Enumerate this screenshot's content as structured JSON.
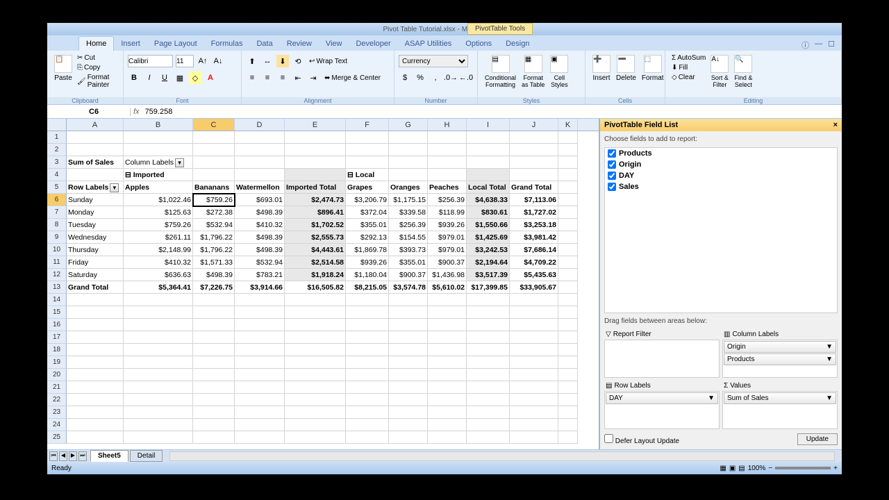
{
  "titlebar": {
    "app_title": "Pivot Table Tutorial.xlsx - Microsoft Excel",
    "contextual": "PivotTable Tools"
  },
  "tabs": {
    "items": [
      "Home",
      "Insert",
      "Page Layout",
      "Formulas",
      "Data",
      "Review",
      "View",
      "Developer",
      "ASAP Utilities",
      "Options",
      "Design"
    ],
    "active": "Home"
  },
  "ribbon": {
    "clipboard": {
      "paste": "Paste",
      "cut": "Cut",
      "copy": "Copy",
      "painter": "Format Painter",
      "label": "Clipboard"
    },
    "font": {
      "name": "Calibri",
      "size": "11",
      "label": "Font"
    },
    "alignment": {
      "wrap": "Wrap Text",
      "merge": "Merge & Center",
      "label": "Alignment"
    },
    "number": {
      "format": "Currency",
      "label": "Number"
    },
    "styles": {
      "cond": "Conditional\nFormatting",
      "fmt": "Format\nas Table",
      "cell": "Cell\nStyles",
      "label": "Styles"
    },
    "cells": {
      "insert": "Insert",
      "delete": "Delete",
      "format": "Format",
      "label": "Cells"
    },
    "editing": {
      "sum": "AutoSum",
      "fill": "Fill",
      "clear": "Clear",
      "sort": "Sort &\nFilter",
      "find": "Find &\nSelect",
      "label": "Editing"
    }
  },
  "formula_bar": {
    "name_box": "C6",
    "formula": "759.258"
  },
  "columns": [
    "A",
    "B",
    "C",
    "D",
    "E",
    "F",
    "G",
    "H",
    "I",
    "J",
    "K"
  ],
  "selected_col": "C",
  "selected_row": 6,
  "pivot": {
    "r3": {
      "A": "Sum of Sales",
      "B": "Column Labels"
    },
    "r4": {
      "B": "Imported",
      "F": "Local"
    },
    "r5": {
      "A": "Row Labels",
      "B": "Apples",
      "C": "Bananans",
      "D": "Watermellon",
      "E": "Imported Total",
      "F": "Grapes",
      "G": "Oranges",
      "H": "Peaches",
      "I": "Local Total",
      "J": "Grand Total"
    },
    "rows": [
      {
        "A": "Sunday",
        "B": "$1,022.46",
        "C": "$759.26",
        "D": "$693.01",
        "E": "$2,474.73",
        "F": "$3,206.79",
        "G": "$1,175.15",
        "H": "$256.39",
        "I": "$4,638.33",
        "J": "$7,113.06"
      },
      {
        "A": "Monday",
        "B": "$125.63",
        "C": "$272.38",
        "D": "$498.39",
        "E": "$896.41",
        "F": "$372.04",
        "G": "$339.58",
        "H": "$118.99",
        "I": "$830.61",
        "J": "$1,727.02"
      },
      {
        "A": "Tuesday",
        "B": "$759.26",
        "C": "$532.94",
        "D": "$410.32",
        "E": "$1,702.52",
        "F": "$355.01",
        "G": "$256.39",
        "H": "$939.26",
        "I": "$1,550.66",
        "J": "$3,253.18"
      },
      {
        "A": "Wednesday",
        "B": "$261.11",
        "C": "$1,796.22",
        "D": "$498.39",
        "E": "$2,555.73",
        "F": "$292.13",
        "G": "$154.55",
        "H": "$979.01",
        "I": "$1,425.69",
        "J": "$3,981.42"
      },
      {
        "A": "Thursday",
        "B": "$2,148.99",
        "C": "$1,796.22",
        "D": "$498.39",
        "E": "$4,443.61",
        "F": "$1,869.78",
        "G": "$393.73",
        "H": "$979.01",
        "I": "$3,242.53",
        "J": "$7,686.14"
      },
      {
        "A": "Friday",
        "B": "$410.32",
        "C": "$1,571.33",
        "D": "$532.94",
        "E": "$2,514.58",
        "F": "$939.26",
        "G": "$355.01",
        "H": "$900.37",
        "I": "$2,194.64",
        "J": "$4,709.22"
      },
      {
        "A": "Saturday",
        "B": "$636.63",
        "C": "$498.39",
        "D": "$783.21",
        "E": "$1,918.24",
        "F": "$1,180.04",
        "G": "$900.37",
        "H": "$1,436.98",
        "I": "$3,517.39",
        "J": "$5,435.63"
      },
      {
        "A": "Grand Total",
        "B": "$5,364.41",
        "C": "$7,226.75",
        "D": "$3,914.66",
        "E": "$16,505.82",
        "F": "$8,215.05",
        "G": "$3,574.78",
        "H": "$5,610.02",
        "I": "$17,399.85",
        "J": "$33,905.67"
      }
    ]
  },
  "field_list": {
    "title": "PivotTable Field List",
    "prompt": "Choose fields to add to report:",
    "fields": [
      {
        "name": "Products",
        "checked": true,
        "bold": true
      },
      {
        "name": "Origin",
        "checked": true,
        "bold": true
      },
      {
        "name": "DAY",
        "checked": true,
        "bold": true
      },
      {
        "name": "Sales",
        "checked": true,
        "bold": true
      }
    ],
    "areas_prompt": "Drag fields between areas below:",
    "report_filter": "Report Filter",
    "column_labels": "Column Labels",
    "row_labels": "Row Labels",
    "values": "Values",
    "col_items": [
      "Origin",
      "Products"
    ],
    "row_items": [
      "DAY"
    ],
    "val_items": [
      "Sum of Sales"
    ],
    "defer": "Defer Layout Update",
    "update": "Update"
  },
  "sheets": {
    "tabs": [
      "Sheet5",
      "Detail"
    ],
    "active": "Sheet5"
  },
  "statusbar": {
    "ready": "Ready",
    "zoom": "100%"
  }
}
